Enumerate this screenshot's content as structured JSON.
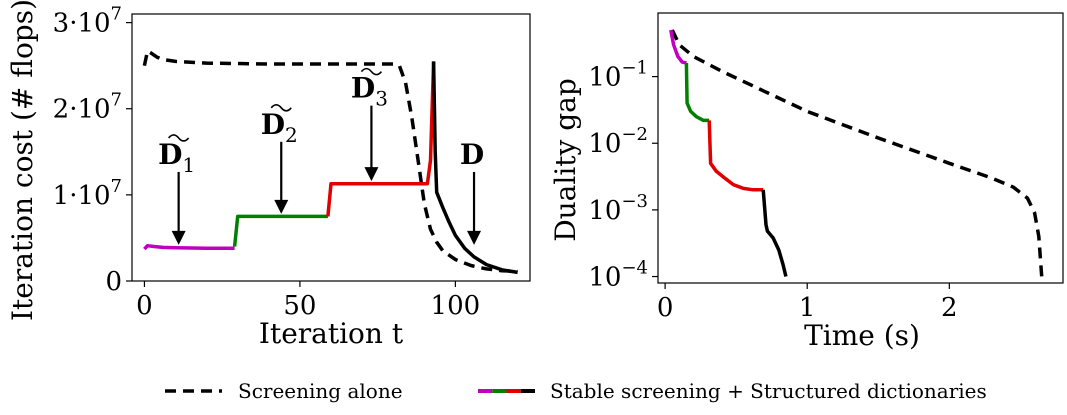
{
  "legend": {
    "screening_alone": "Screening alone",
    "stable_structured": "Stable screening + Structured dictionaries",
    "swatch_colors": [
      "#c000c0",
      "#008000",
      "#e00000",
      "#000000"
    ]
  },
  "chart_data": [
    {
      "type": "line",
      "xlabel": "Iteration t",
      "ylabel": "Iteration cost (# flops)",
      "xlim": [
        -4,
        124
      ],
      "ylim": [
        0,
        31000000
      ],
      "xticks": [
        0,
        50,
        100
      ],
      "xtick_labels": [
        "0",
        "50",
        "100"
      ],
      "yticks": [
        0,
        10000000,
        20000000,
        30000000
      ],
      "ytick_labels": [
        "0",
        "1·10",
        "2·10",
        "3·10"
      ],
      "ytick_exponents": [
        "",
        "7",
        "7",
        "7"
      ],
      "grid": false,
      "series": [
        {
          "style": "dashed",
          "color": "#000000",
          "x": [
            0,
            1,
            2,
            4,
            6,
            10,
            20,
            40,
            60,
            70,
            80,
            82,
            84,
            86,
            88,
            90,
            92,
            94,
            96,
            100,
            105,
            110,
            115,
            120
          ],
          "y": [
            25000000,
            26700000,
            26500000,
            26000000,
            25700000,
            25500000,
            25300000,
            25200000,
            25200000,
            25200000,
            25200000,
            25000000,
            23000000,
            19000000,
            14000000,
            9000000,
            6000000,
            4500000,
            3500000,
            2500000,
            1800000,
            1400000,
            1200000,
            1100000
          ]
        },
        {
          "style": "solid",
          "color": "#c000c0",
          "x": [
            0,
            1,
            3,
            6,
            10,
            20,
            28,
            29
          ],
          "y": [
            3700000,
            4100000,
            4000000,
            3900000,
            3850000,
            3800000,
            3800000,
            3800000
          ]
        },
        {
          "style": "solid",
          "color": "#008000",
          "x": [
            29,
            30,
            40,
            50,
            59
          ],
          "y": [
            4000000,
            7500000,
            7500000,
            7500000,
            7500000
          ]
        },
        {
          "style": "solid",
          "color": "#e00000",
          "x": [
            59,
            60,
            70,
            80,
            91,
            92,
            92.5,
            93
          ],
          "y": [
            7500000,
            11300000,
            11300000,
            11300000,
            11300000,
            14000000,
            20000000,
            25500000
          ]
        },
        {
          "style": "solid",
          "color": "#000000",
          "x": [
            93,
            93.5,
            94,
            96,
            98,
            100,
            103,
            106,
            110,
            115,
            120
          ],
          "y": [
            25500000,
            15000000,
            10300000,
            8500000,
            6800000,
            5300000,
            3800000,
            2800000,
            1900000,
            1300000,
            1000000
          ]
        }
      ],
      "annotations": [
        {
          "label": "D",
          "subscript": "1",
          "tilde": true,
          "x": 11,
          "y_text": 11500000,
          "y_arrow": 4200000
        },
        {
          "label": "D",
          "subscript": "2",
          "tilde": true,
          "x": 44,
          "y_text": 15000000,
          "y_arrow": 7800000
        },
        {
          "label": "D",
          "subscript": "3",
          "tilde": true,
          "x": 73,
          "y_text": 19200000,
          "y_arrow": 11600000
        },
        {
          "label": "D",
          "subscript": "",
          "tilde": false,
          "x": 106,
          "y_text": 11500000,
          "y_arrow": 4200000
        }
      ]
    },
    {
      "type": "line",
      "xlabel": "Time (s)",
      "ylabel": "Duality gap",
      "xscale": "linear",
      "yscale": "log",
      "xlim": [
        -0.05,
        2.8
      ],
      "ylim": [
        8e-05,
        0.9
      ],
      "xticks": [
        0,
        1,
        2
      ],
      "xtick_labels": [
        "0",
        "1",
        "2"
      ],
      "yticks": [
        0.0001,
        0.001,
        0.01,
        0.1
      ],
      "ytick_labels": [
        "10",
        "10",
        "10",
        "10"
      ],
      "ytick_exponents": [
        "−4",
        "−3",
        "−2",
        "−1"
      ],
      "grid": false,
      "series": [
        {
          "style": "dashed",
          "color": "#000000",
          "x": [
            0.05,
            0.1,
            0.2,
            0.4,
            0.7,
            1.0,
            1.5,
            2.0,
            2.3,
            2.45,
            2.55,
            2.6,
            2.63,
            2.65
          ],
          "y": [
            0.5,
            0.3,
            0.2,
            0.12,
            0.06,
            0.03,
            0.012,
            0.005,
            0.003,
            0.0022,
            0.0015,
            0.0009,
            0.0004,
            0.0001
          ]
        },
        {
          "style": "solid",
          "color": "#c000c0",
          "x": [
            0.04,
            0.06,
            0.09,
            0.12,
            0.15
          ],
          "y": [
            0.5,
            0.3,
            0.2,
            0.165,
            0.16
          ]
        },
        {
          "style": "solid",
          "color": "#008000",
          "x": [
            0.15,
            0.155,
            0.18,
            0.22,
            0.27,
            0.31
          ],
          "y": [
            0.16,
            0.04,
            0.03,
            0.025,
            0.022,
            0.022
          ]
        },
        {
          "style": "solid",
          "color": "#e00000",
          "x": [
            0.31,
            0.32,
            0.36,
            0.42,
            0.48,
            0.55,
            0.62,
            0.69
          ],
          "y": [
            0.022,
            0.005,
            0.0038,
            0.003,
            0.0024,
            0.0021,
            0.002,
            0.002
          ]
        },
        {
          "style": "solid",
          "color": "#000000",
          "x": [
            0.69,
            0.71,
            0.72,
            0.76,
            0.8,
            0.83,
            0.85
          ],
          "y": [
            0.002,
            0.0006,
            0.00048,
            0.00038,
            0.00025,
            0.00015,
            0.0001
          ]
        }
      ]
    }
  ]
}
